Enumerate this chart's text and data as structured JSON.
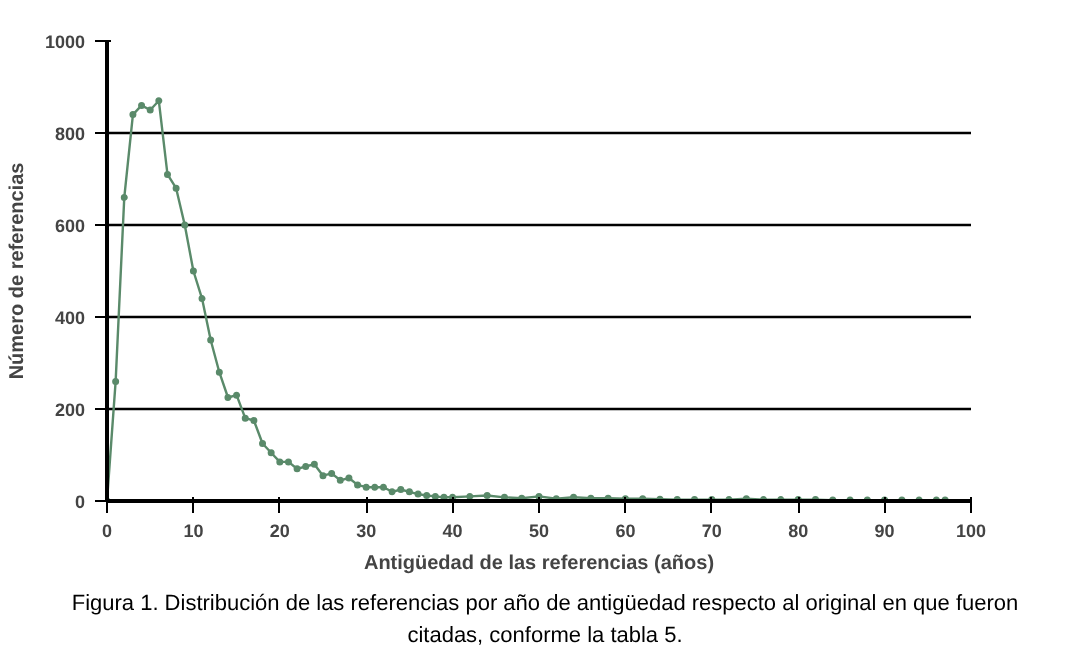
{
  "chart_data": {
    "type": "line",
    "xlabel": "Antigüedad de las referencias (años)",
    "ylabel": "Número de referencias",
    "x": [
      0,
      1,
      2,
      3,
      4,
      5,
      6,
      7,
      8,
      9,
      10,
      11,
      12,
      13,
      14,
      15,
      16,
      17,
      18,
      19,
      20,
      21,
      22,
      23,
      24,
      25,
      26,
      27,
      28,
      29,
      30,
      31,
      32,
      33,
      34,
      35,
      36,
      37,
      38,
      39,
      40,
      42,
      44,
      46,
      48,
      50,
      52,
      54,
      56,
      58,
      60,
      62,
      64,
      66,
      68,
      70,
      72,
      74,
      76,
      78,
      80,
      82,
      84,
      86,
      88,
      90,
      92,
      94,
      96,
      97
    ],
    "series": [
      {
        "color": "#5a8a6a",
        "values": [
          0,
          260,
          660,
          840,
          860,
          850,
          870,
          710,
          680,
          600,
          500,
          440,
          350,
          280,
          225,
          230,
          180,
          175,
          125,
          105,
          85,
          85,
          70,
          75,
          80,
          55,
          60,
          45,
          50,
          35,
          30,
          30,
          30,
          20,
          25,
          20,
          15,
          12,
          10,
          8,
          8,
          10,
          12,
          8,
          6,
          10,
          5,
          8,
          6,
          6,
          5,
          5,
          4,
          3,
          3,
          3,
          3,
          5,
          3,
          3,
          3,
          3,
          2,
          2,
          2,
          2,
          2,
          2,
          2,
          2
        ]
      }
    ],
    "xlim": [
      0,
      100
    ],
    "ylim": [
      0,
      1000
    ],
    "xticks": [
      0,
      10,
      20,
      30,
      40,
      50,
      60,
      70,
      80,
      90,
      100
    ],
    "yticks": [
      0,
      200,
      400,
      600,
      800,
      1000
    ],
    "grid": "y",
    "marker": "circle",
    "line_style": "solid",
    "annotations": [
      "Figura 1. Distribución de las referencias por año de antigüedad respecto al original en que fueron\ncitadas, conforme la tabla 5."
    ]
  }
}
